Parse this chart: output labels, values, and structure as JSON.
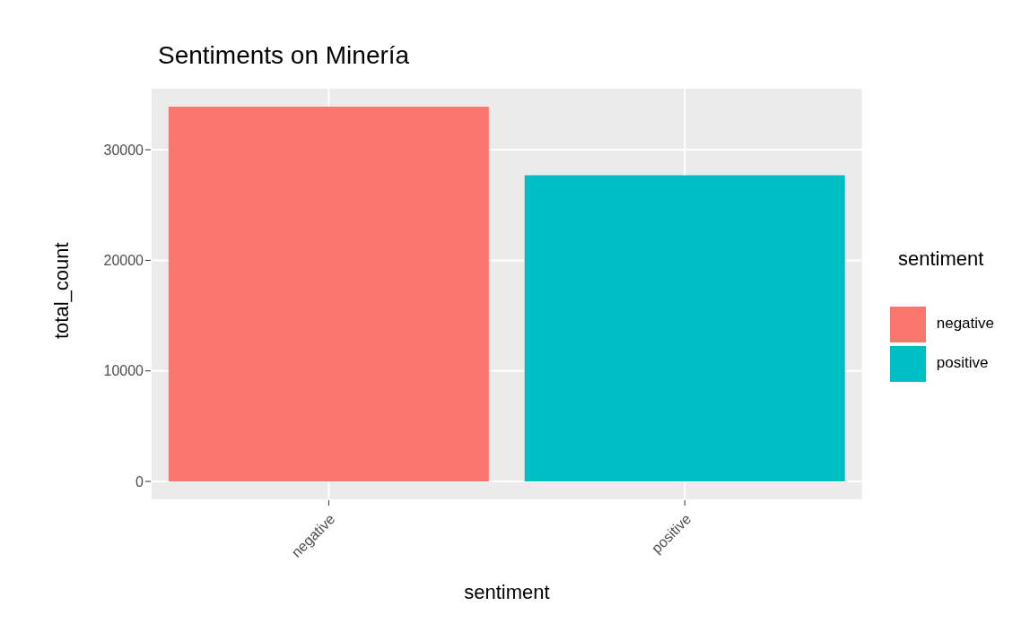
{
  "chart_data": {
    "type": "bar",
    "title": "Sentiments on Minería",
    "xlabel": "sentiment",
    "ylabel": "total_count",
    "legend_title": "sentiment",
    "categories": [
      "negative",
      "positive"
    ],
    "series": [
      {
        "name": "negative",
        "color": "#f8766d",
        "values": [
          33900,
          null
        ]
      },
      {
        "name": "positive",
        "color": "#00bfc4",
        "values": [
          null,
          27700
        ]
      }
    ],
    "stacked": true,
    "ylim": [
      -1700,
      35600
    ],
    "yticks": [
      0,
      10000,
      20000,
      30000
    ],
    "grid": true,
    "legend": "right"
  }
}
